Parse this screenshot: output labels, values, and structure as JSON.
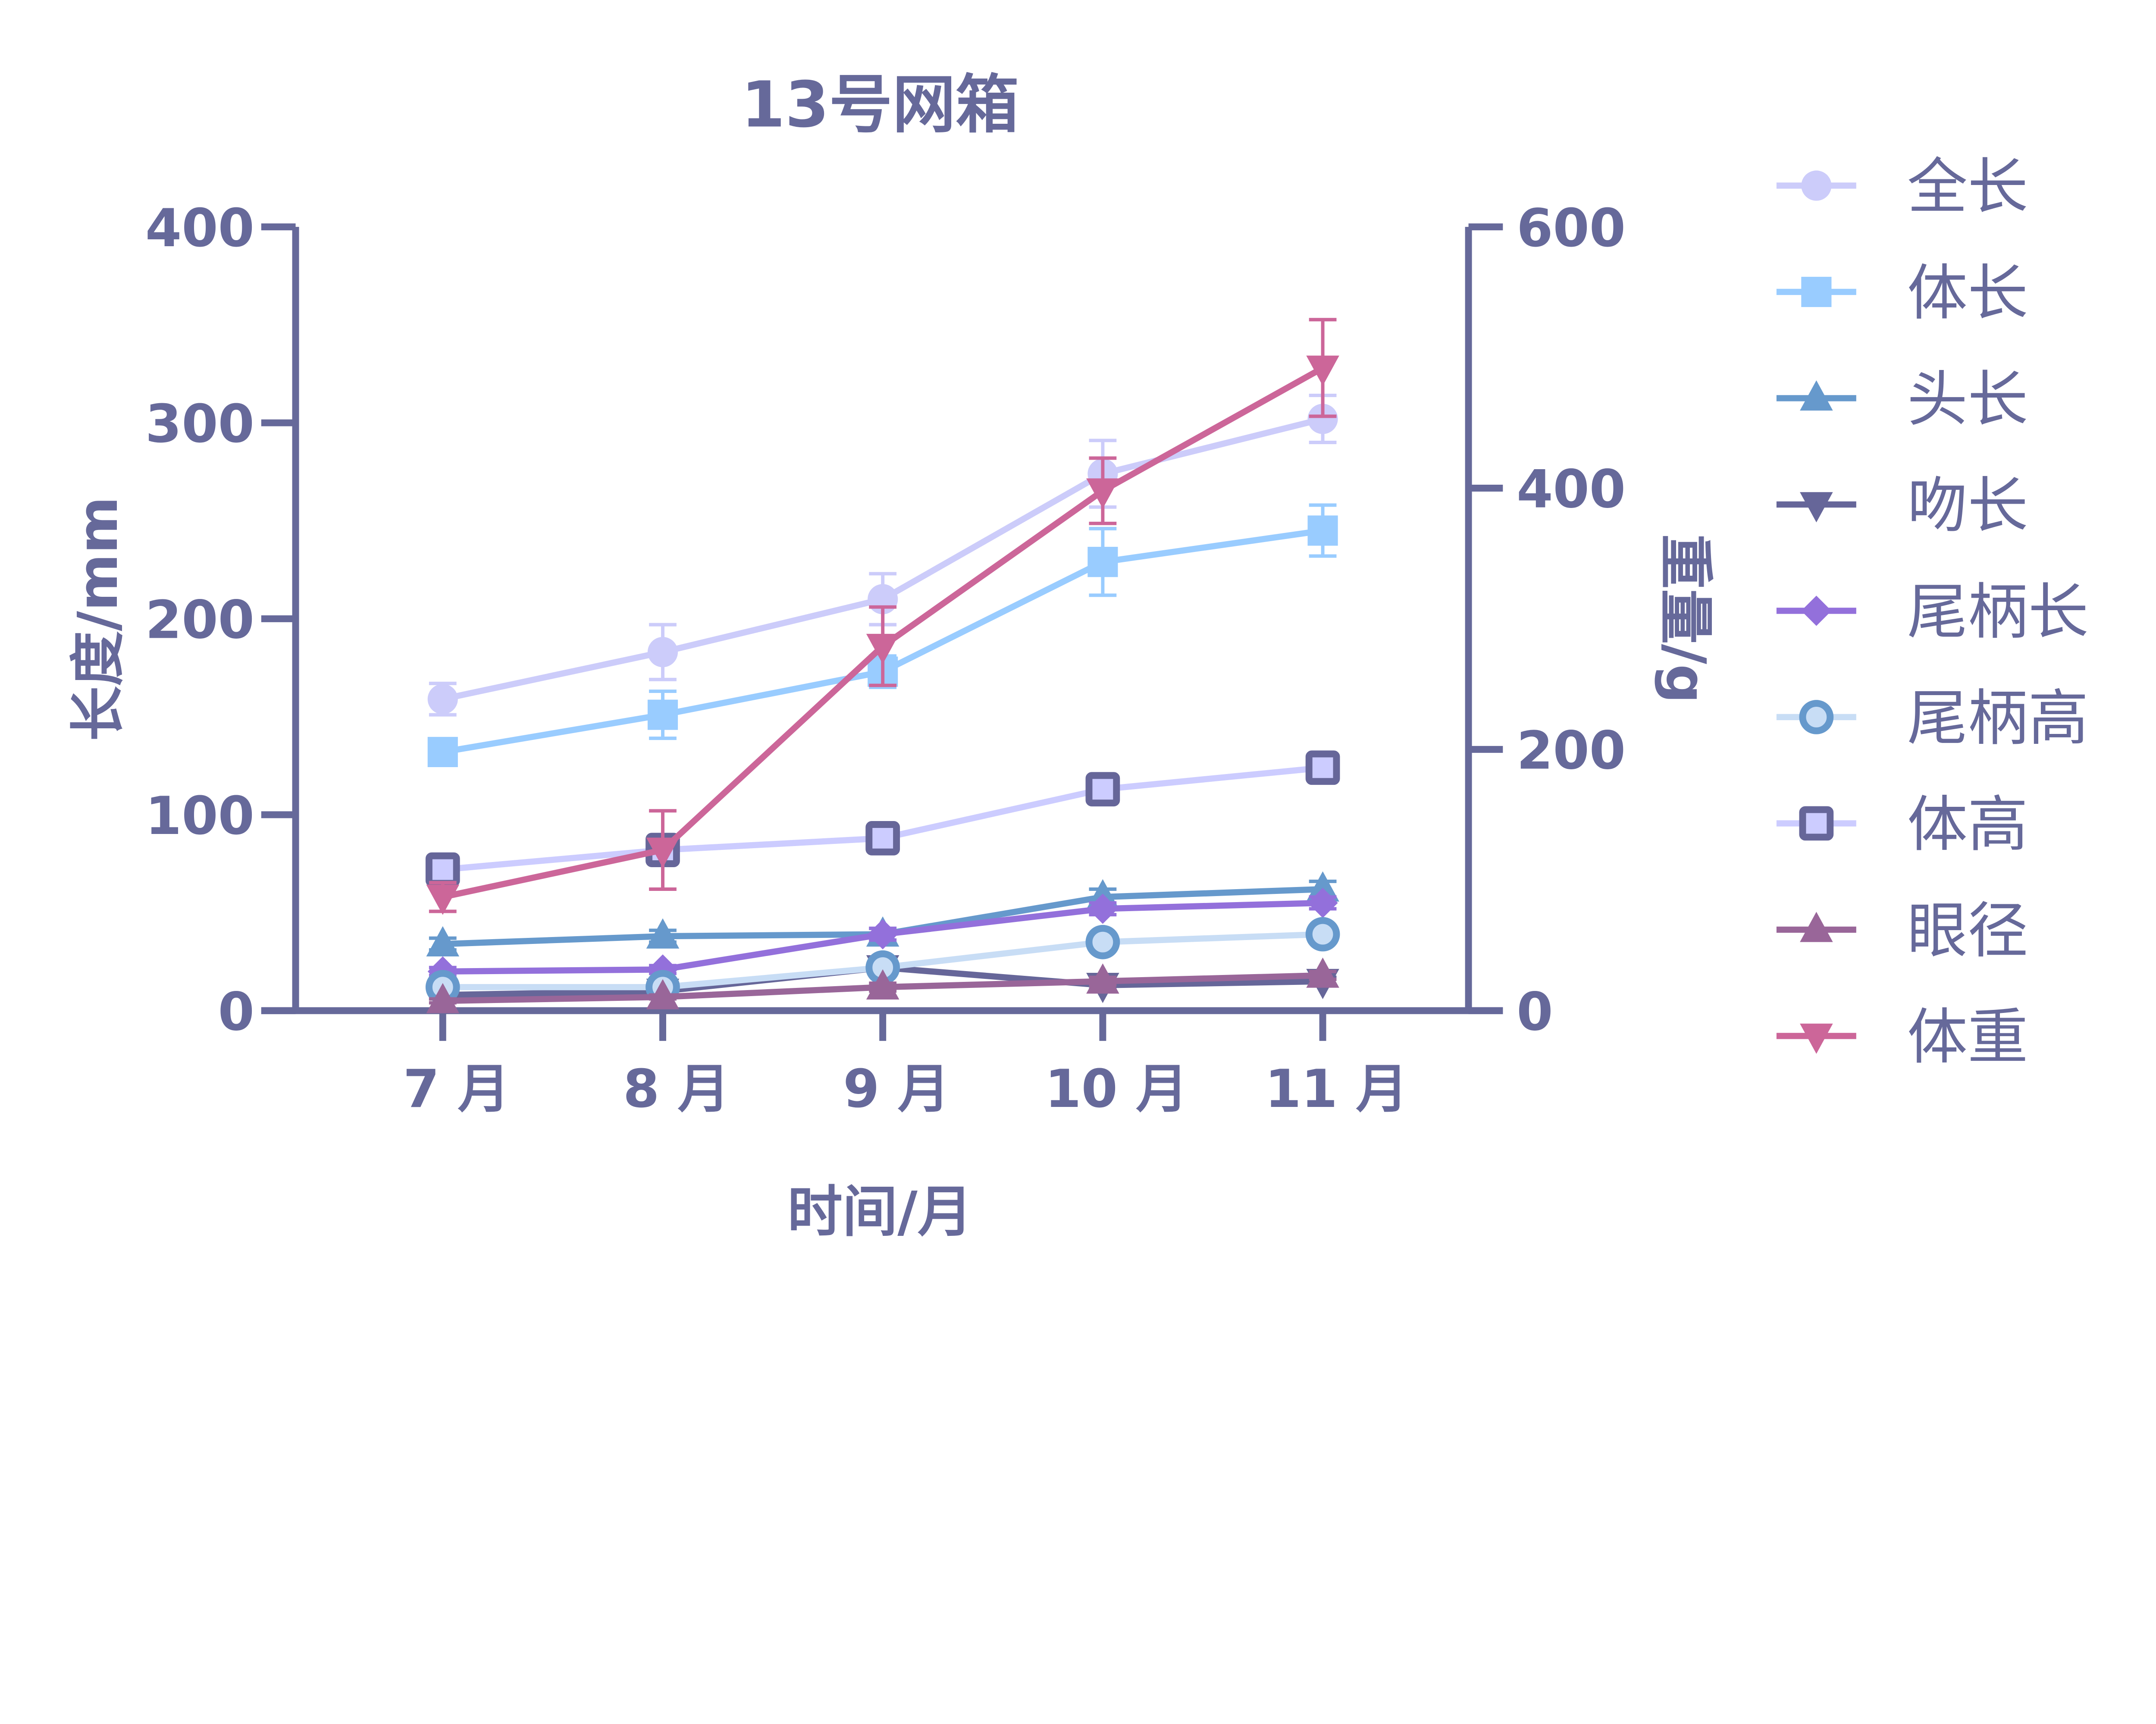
{
  "chart_data": {
    "type": "line",
    "title": "13号网箱",
    "xlabel": "时间/月",
    "ylabel": "长度/mm",
    "y2label": "重量/g",
    "categories": [
      "7 月",
      "8 月",
      "9 月",
      "10 月",
      "11 月"
    ],
    "ylim": [
      0,
      400
    ],
    "y2lim": [
      0,
      600
    ],
    "yticks": [
      0,
      100,
      200,
      300,
      400
    ],
    "y2ticks": [
      0,
      200,
      400,
      600
    ],
    "grid": false,
    "legend_position": "right",
    "axis_color": "#66699a",
    "series": [
      {
        "name": "全长",
        "axis": "left",
        "marker": "circle",
        "color": "#ccccfa",
        "edge": "#ccccfa",
        "values": [
          159,
          183,
          210,
          274,
          302
        ],
        "errors": [
          8,
          14,
          13,
          17,
          12
        ]
      },
      {
        "name": "体长",
        "axis": "left",
        "marker": "square",
        "color": "#99ccff",
        "edge": "#99ccff",
        "values": [
          132,
          151,
          173,
          229,
          245
        ],
        "errors": [
          0,
          12,
          8,
          17,
          13
        ]
      },
      {
        "name": "头长",
        "axis": "left",
        "marker": "triangle-up",
        "color": "#6699cc",
        "edge": "#6699cc",
        "values": [
          34,
          38,
          39,
          58,
          62
        ],
        "errors": [
          3,
          3,
          3,
          4,
          4
        ]
      },
      {
        "name": "吻长",
        "axis": "left",
        "marker": "triangle-down",
        "color": "#666699",
        "edge": "#666699",
        "values": [
          8,
          10,
          22,
          13,
          15
        ],
        "errors": [
          2,
          2,
          3,
          2,
          2
        ]
      },
      {
        "name": "尾柄长",
        "axis": "left",
        "marker": "diamond",
        "color": "#9370db",
        "edge": "#9370db",
        "values": [
          20,
          21,
          39,
          52,
          55
        ],
        "errors": [
          2,
          2,
          3,
          3,
          3
        ]
      },
      {
        "name": "尾柄高",
        "axis": "left",
        "marker": "circle-open",
        "color": "#c8ddf5",
        "edge": "#6699cc",
        "values": [
          12,
          12,
          22,
          35,
          39
        ],
        "errors": [
          1,
          1,
          2,
          2,
          2
        ]
      },
      {
        "name": "体高",
        "axis": "left",
        "marker": "square-open",
        "color": "#ccccff",
        "edge": "#666699",
        "values": [
          72,
          82,
          88,
          113,
          124
        ],
        "errors": [
          3,
          4,
          3,
          4,
          4
        ]
      },
      {
        "name": "眼径",
        "axis": "left",
        "marker": "triangle-up",
        "color": "#996699",
        "edge": "#996699",
        "values": [
          5,
          7,
          12,
          15,
          18
        ],
        "errors": [
          1,
          1,
          2,
          2,
          2
        ]
      },
      {
        "name": "体重",
        "axis": "right",
        "marker": "triangle-down",
        "color": "#cc6699",
        "edge": "#cc6699",
        "values": [
          87,
          123,
          279,
          398,
          492
        ],
        "errors": [
          11,
          30,
          30,
          25,
          37
        ]
      }
    ]
  }
}
